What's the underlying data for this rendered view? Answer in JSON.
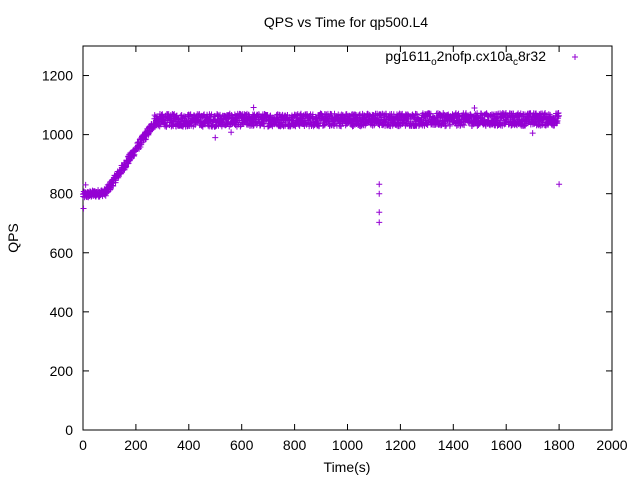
{
  "chart_data": {
    "type": "scatter",
    "title": "QPS vs Time for qp500.L4",
    "xlabel": "Time(s)",
    "ylabel": "QPS",
    "xlim": [
      0,
      2000
    ],
    "ylim": [
      0,
      1300
    ],
    "xticks": [
      0,
      200,
      400,
      600,
      800,
      1000,
      1200,
      1400,
      1600,
      1800,
      2000
    ],
    "yticks": [
      0,
      200,
      400,
      600,
      800,
      1000,
      1200
    ],
    "grid": false,
    "legend_position": "top-right",
    "color": "#9400d3",
    "marker": "plus",
    "series": [
      {
        "name": "pg1611_o2nofp.cx10a_c8r32",
        "legend_parts": {
          "pre": "pg1611",
          "sub1": "o",
          "mid": "2nofp.cx10a",
          "sub2": "c",
          "post": "8r32"
        },
        "description": "about 1800 samples, one per second",
        "segments": [
          {
            "x_start": 0,
            "x_end": 90,
            "y_start": 795,
            "y_end": 805,
            "jitter": 12
          },
          {
            "x_start": 90,
            "x_end": 270,
            "y_start": 810,
            "y_end": 1040,
            "jitter": 15
          },
          {
            "x_start": 270,
            "x_end": 1800,
            "y_start": 1048,
            "y_end": 1052,
            "jitter": 22
          }
        ],
        "outliers": [
          {
            "x": 2,
            "y": 750
          },
          {
            "x": 10,
            "y": 830
          },
          {
            "x": 500,
            "y": 990
          },
          {
            "x": 1120,
            "y": 832
          },
          {
            "x": 1120,
            "y": 800
          },
          {
            "x": 1120,
            "y": 737
          },
          {
            "x": 1120,
            "y": 703
          },
          {
            "x": 1800,
            "y": 832
          },
          {
            "x": 1700,
            "y": 1005
          },
          {
            "x": 560,
            "y": 1008
          },
          {
            "x": 1480,
            "y": 1090
          },
          {
            "x": 645,
            "y": 1092
          }
        ]
      }
    ]
  }
}
